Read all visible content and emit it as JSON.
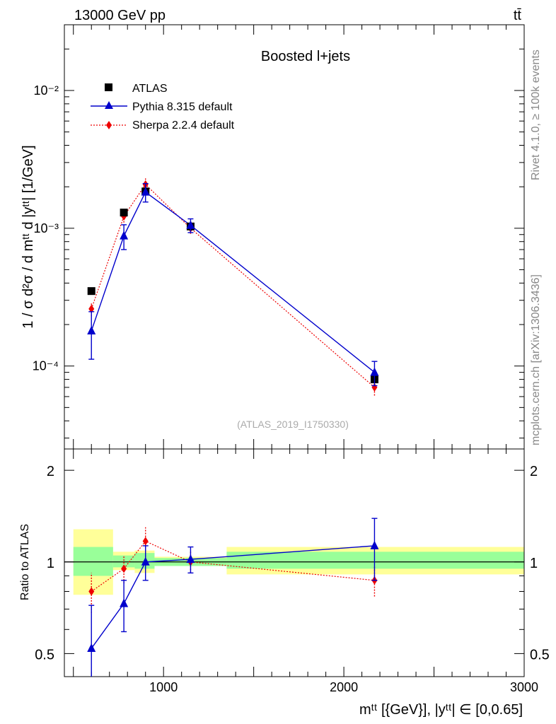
{
  "header": {
    "left_label": "13000 GeV pp",
    "right_label": "tt̄"
  },
  "side_labels": {
    "rivet": "Rivet 4.1.0, ≥ 100k events",
    "source": "mcplots.cern.ch [arXiv:1306.3436]"
  },
  "chart_data": [
    {
      "type": "scatter",
      "title": "Boosted l+jets",
      "analysis_id": "(ATLAS_2019_I1750330)",
      "ylabel": "1 / σ d²σ / d mᵗᵗ d |yᵗᵗ| [1/GeV]",
      "yscale": "log",
      "xlim": [
        450,
        3000
      ],
      "ylim": [
        2.5e-05,
        0.03
      ],
      "ytick_labels": [
        "10⁻⁴",
        "10⁻³",
        "10⁻²"
      ],
      "ytick_values": [
        0.0001,
        0.001,
        0.01
      ],
      "legend_position": "top-left",
      "series": [
        {
          "name": "ATLAS",
          "color": "#000000",
          "marker": "square",
          "line": "none",
          "x": [
            600,
            780,
            900,
            1150,
            2170
          ],
          "y": [
            0.00035,
            0.0013,
            0.00185,
            0.00103,
            8e-05
          ],
          "yerr": [
            0,
            0,
            0,
            0,
            0
          ]
        },
        {
          "name": "Pythia 8.315 default",
          "color": "#0000cc",
          "marker": "triangle",
          "line": "solid",
          "x": [
            600,
            780,
            900,
            1150,
            2170
          ],
          "y": [
            0.00018,
            0.00088,
            0.00183,
            0.00105,
            9e-05
          ],
          "yerr": [
            6.8e-05,
            0.00018,
            0.00028,
            0.00012,
            1.8e-05
          ]
        },
        {
          "name": "Sherpa 2.2.4 default",
          "color": "#ee0000",
          "marker": "diamond",
          "line": "dotted",
          "x": [
            600,
            780,
            900,
            1150,
            2170
          ],
          "y": [
            0.00026,
            0.00122,
            0.00208,
            0.001,
            7e-05
          ],
          "yerr": [
            3e-05,
            0.00012,
            0.00022,
            9e-05,
            9e-06
          ]
        }
      ]
    },
    {
      "type": "scatter",
      "ylabel": "Ratio to ATLAS",
      "xlabel": "mᵗᵗ [{GeV}], |yᵗᵗ| ∈ [0,0.65]",
      "yscale": "log",
      "xlim": [
        450,
        3000
      ],
      "ylim": [
        0.42,
        2.35
      ],
      "ytick_values": [
        0.5,
        1,
        2
      ],
      "ytick_labels": [
        "0.5",
        "1",
        "2"
      ],
      "xtick_values": [
        1000,
        2000,
        3000
      ],
      "xtick_labels": [
        "1000",
        "2000",
        "3000"
      ],
      "reference_line": 1,
      "uncertainty_bands": {
        "bins": [
          [
            500,
            720
          ],
          [
            720,
            840
          ],
          [
            840,
            950
          ],
          [
            950,
            1350
          ],
          [
            1350,
            3000
          ]
        ],
        "inner": [
          [
            0.9,
            1.12
          ],
          [
            0.96,
            1.05
          ],
          [
            0.95,
            1.07
          ],
          [
            0.97,
            1.03
          ],
          [
            0.95,
            1.08
          ]
        ],
        "outer": [
          [
            0.78,
            1.28
          ],
          [
            0.94,
            1.08
          ],
          [
            0.92,
            1.09
          ],
          [
            0.97,
            1.04
          ],
          [
            0.91,
            1.12
          ]
        ],
        "inner_color": "#99ff99",
        "outer_color": "#ffff99"
      },
      "series": [
        {
          "name": "Pythia 8.315 default",
          "color": "#0000cc",
          "marker": "triangle",
          "line": "solid",
          "x": [
            600,
            780,
            900,
            1150,
            2170
          ],
          "y": [
            0.52,
            0.73,
            1.0,
            1.02,
            1.13
          ],
          "yerr": [
            0.2,
            0.14,
            0.13,
            0.1,
            0.26
          ]
        },
        {
          "name": "Sherpa 2.2.4 default",
          "color": "#ee0000",
          "marker": "diamond",
          "line": "dotted",
          "x": [
            600,
            780,
            900,
            1150,
            2170
          ],
          "y": [
            0.8,
            0.95,
            1.17,
            1.0,
            0.87
          ],
          "yerr": [
            0.12,
            0.1,
            0.13,
            0.08,
            0.1
          ]
        }
      ]
    }
  ]
}
